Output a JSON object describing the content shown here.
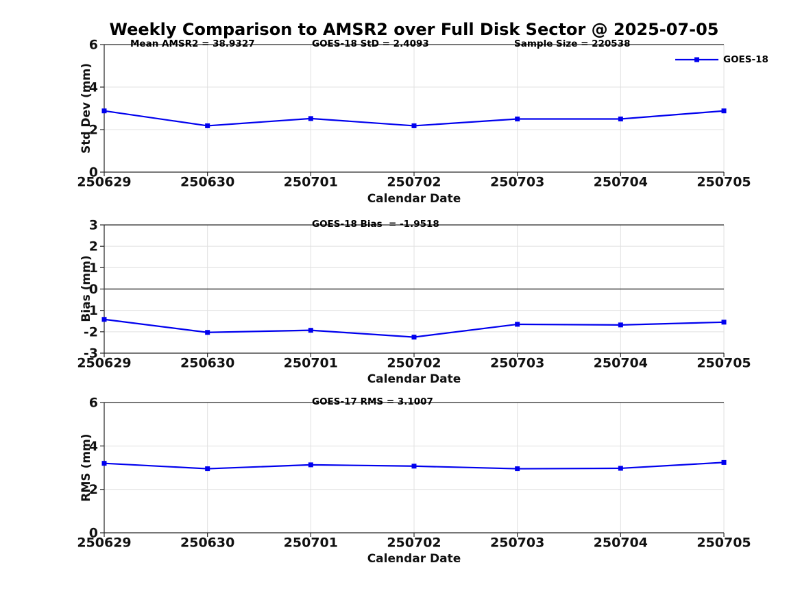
{
  "title": "Weekly Comparison to AMSR2 over Full Disk Sector @ 2025-07-05",
  "colors": {
    "series_blue": "#0000EE",
    "grid": "#e0e0e0",
    "axis": "#262626",
    "zero_line": "#404040"
  },
  "chart_data": [
    {
      "type": "line",
      "categories": [
        "250629",
        "250630",
        "250701",
        "250702",
        "250703",
        "250704",
        "250705"
      ],
      "series": [
        {
          "name": "GOES-18",
          "color": "#0000EE",
          "marker": "square",
          "values": [
            2.88,
            2.18,
            2.52,
            2.18,
            2.5,
            2.5,
            2.88
          ]
        }
      ],
      "xlabel": "Calendar Date",
      "ylabel": "Std Dev (mm)",
      "ylim": [
        0,
        6
      ],
      "yticks": [
        0,
        2,
        4,
        6
      ],
      "grid": true,
      "legend": {
        "show": true,
        "position": "top-right",
        "label": "GOES-18"
      },
      "annotations": [
        "Mean AMSR2 = 38.9327",
        "GOES-18 StD = 2.4093",
        "Sample Size = 220538"
      ]
    },
    {
      "type": "line",
      "categories": [
        "250629",
        "250630",
        "250701",
        "250702",
        "250703",
        "250704",
        "250705"
      ],
      "series": [
        {
          "name": "GOES-18",
          "color": "#0000EE",
          "marker": "square",
          "values": [
            -1.42,
            -2.03,
            -1.93,
            -2.25,
            -1.65,
            -1.68,
            -1.55
          ]
        }
      ],
      "xlabel": "Calendar Date",
      "ylabel": "Bias (mm)",
      "ylim": [
        -3,
        3
      ],
      "yticks": [
        -3,
        -2,
        -1,
        0,
        1,
        2,
        3
      ],
      "grid": true,
      "zero_line": true,
      "annotations": [
        "GOES-18 Bias  = -1.9518"
      ]
    },
    {
      "type": "line",
      "categories": [
        "250629",
        "250630",
        "250701",
        "250702",
        "250703",
        "250704",
        "250705"
      ],
      "series": [
        {
          "name": "GOES-18",
          "color": "#0000EE",
          "marker": "square",
          "values": [
            3.2,
            2.95,
            3.13,
            3.07,
            2.95,
            2.97,
            3.24
          ]
        }
      ],
      "xlabel": "Calendar Date",
      "ylabel": "RMS (mm)",
      "ylim": [
        0,
        6
      ],
      "yticks": [
        0,
        2,
        4,
        6
      ],
      "grid": true,
      "annotations": [
        "GOES-17 RMS = 3.1007"
      ]
    }
  ]
}
